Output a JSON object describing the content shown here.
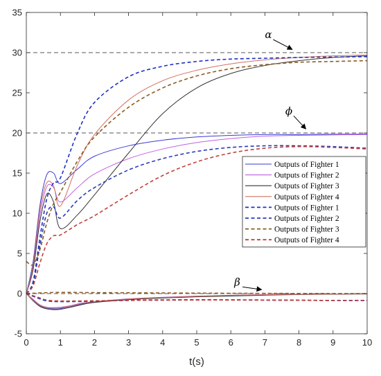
{
  "chart_data": {
    "type": "line",
    "xlabel": "t(s)",
    "ylabel": "",
    "xlim": [
      0,
      10
    ],
    "ylim": [
      -5,
      35
    ],
    "xticks": [
      "0",
      "1",
      "2",
      "3",
      "4",
      "5",
      "6",
      "7",
      "8",
      "9",
      "10"
    ],
    "yticks": [
      "-5",
      "0",
      "5",
      "10",
      "15",
      "20",
      "25",
      "30",
      "35"
    ],
    "grid": false,
    "legend_position": "right",
    "reference_lines": [
      {
        "y": 30,
        "color": "#555555",
        "dash": true
      },
      {
        "y": 20,
        "color": "#555555",
        "dash": true
      },
      {
        "y": 0,
        "color": "#555555",
        "dash": true
      }
    ],
    "annotations": [
      {
        "text": "α",
        "x": 7.0,
        "y": 31.8,
        "arrow_to": [
          7.8,
          30.4
        ]
      },
      {
        "text": "ϕ",
        "x": 7.6,
        "y": 22.3,
        "arrow_to": [
          8.2,
          20.5
        ]
      },
      {
        "text": "β",
        "x": 6.1,
        "y": 1.0,
        "arrow_to": [
          6.9,
          0.5
        ]
      }
    ],
    "series": [
      {
        "name": "Outputs of Fighter 1",
        "color": "#3a3ad6",
        "dash": false,
        "x": [
          0,
          0.2,
          0.4,
          0.6,
          0.8,
          1.0,
          1.5,
          2,
          3,
          4,
          5,
          6,
          7,
          8,
          9,
          10
        ],
        "y": [
          0,
          4,
          11,
          14.8,
          15,
          13.7,
          15.5,
          17.1,
          18.4,
          19.1,
          19.5,
          19.7,
          19.8,
          19.8,
          19.85,
          19.85
        ]
      },
      {
        "name": "Outputs of Fighter 2",
        "color": "#c060e0",
        "dash": false,
        "x": [
          0,
          0.2,
          0.4,
          0.6,
          0.8,
          1.0,
          1.5,
          2,
          3,
          4,
          5,
          6,
          7,
          8,
          9,
          10
        ],
        "y": [
          0,
          3.3,
          9.8,
          13.3,
          13.2,
          11.4,
          13.2,
          14.9,
          16.8,
          18.0,
          18.8,
          19.3,
          19.6,
          19.7,
          19.75,
          19.8
        ]
      },
      {
        "name": "Outputs of Fighter 3",
        "color": "#333333",
        "dash": false,
        "x": [
          0,
          0.2,
          0.4,
          0.6,
          0.8,
          1.0,
          1.5,
          2,
          3,
          4,
          5,
          6,
          7,
          8,
          9,
          10
        ],
        "y": [
          0,
          3,
          9,
          12.4,
          11.4,
          8.1,
          9.8,
          12.3,
          17.5,
          22.4,
          25.6,
          27.4,
          28.4,
          29.0,
          29.4,
          29.6
        ]
      },
      {
        "name": "Outputs of Fighter 4",
        "color": "#d07060",
        "dash": false,
        "x": [
          0,
          0.2,
          0.4,
          0.6,
          0.8,
          1.0,
          1.5,
          2,
          3,
          4,
          5,
          6,
          7,
          8,
          9,
          10
        ],
        "y": [
          0,
          3.5,
          10.5,
          13.8,
          13.4,
          10.9,
          16.0,
          19.8,
          24.1,
          26.5,
          27.8,
          28.6,
          29.1,
          29.4,
          29.6,
          29.7
        ]
      },
      {
        "name": "Outputs of Fighter 1",
        "color": "#1f2fbf",
        "dash": true,
        "x": [
          0,
          0.2,
          0.4,
          0.6,
          0.8,
          1.0,
          1.5,
          2,
          3,
          4,
          5,
          6,
          7,
          8,
          9,
          10
        ],
        "y": [
          0,
          1.5,
          7.0,
          11.8,
          13.8,
          14.4,
          20.0,
          23.8,
          27.0,
          28.3,
          28.9,
          29.2,
          29.3,
          29.4,
          29.45,
          29.5
        ]
      },
      {
        "name": "Outputs of Fighter 2",
        "color": "#2b3ab8",
        "dash": true,
        "x": [
          0,
          0.2,
          0.4,
          0.6,
          0.8,
          1.0,
          1.5,
          2,
          3,
          4,
          5,
          6,
          7,
          8,
          9,
          10
        ],
        "y": [
          0,
          1.2,
          6.0,
          10.0,
          10.8,
          9.4,
          11.6,
          13.2,
          15.4,
          16.8,
          17.7,
          18.2,
          18.4,
          18.4,
          18.3,
          18.1
        ]
      },
      {
        "name": "Outputs of Fighter 3",
        "color": "#8a5a20",
        "dash": true,
        "x": [
          0,
          0.2,
          0.4,
          0.6,
          0.8,
          1.0,
          1.5,
          2,
          3,
          4,
          5,
          6,
          7,
          8,
          9,
          10
        ],
        "y": [
          4,
          3.6,
          5.5,
          8.8,
          11.2,
          12.6,
          16.5,
          19.5,
          23.2,
          25.6,
          27.1,
          28.0,
          28.5,
          28.8,
          28.9,
          29.0
        ]
      },
      {
        "name": "Outputs of Fighter 4",
        "color": "#c0403a",
        "dash": true,
        "x": [
          0,
          0.2,
          0.4,
          0.6,
          0.8,
          1.0,
          1.5,
          2,
          3,
          4,
          5,
          6,
          7,
          8,
          9,
          10
        ],
        "y": [
          0,
          1.0,
          3.8,
          6.2,
          7.2,
          7.3,
          8.6,
          9.7,
          12.3,
          14.7,
          16.4,
          17.5,
          18.1,
          18.3,
          18.2,
          18.0
        ]
      },
      {
        "name": "",
        "color": "#3a3ad6",
        "dash": false,
        "x": [
          0,
          0.2,
          0.4,
          0.6,
          0.8,
          1.0,
          1.3,
          1.6,
          2,
          3,
          4,
          5,
          6,
          7,
          8,
          9,
          10
        ],
        "y": [
          0,
          -0.8,
          -1.5,
          -1.8,
          -1.9,
          -1.85,
          -1.6,
          -1.3,
          -1.05,
          -0.7,
          -0.5,
          -0.35,
          -0.25,
          -0.15,
          -0.1,
          -0.06,
          -0.04
        ]
      },
      {
        "name": "",
        "color": "#c060e0",
        "dash": false,
        "x": [
          0,
          0.2,
          0.4,
          0.6,
          0.8,
          1.0,
          1.3,
          1.6,
          2,
          3,
          4,
          5,
          6,
          7,
          8,
          9,
          10
        ],
        "y": [
          0,
          -0.7,
          -1.4,
          -1.7,
          -1.75,
          -1.7,
          -1.5,
          -1.2,
          -1.0,
          -0.65,
          -0.45,
          -0.3,
          -0.2,
          -0.12,
          -0.08,
          -0.05,
          -0.03
        ]
      },
      {
        "name": "",
        "color": "#333333",
        "dash": false,
        "x": [
          0,
          0.2,
          0.4,
          0.6,
          0.8,
          1.0,
          1.3,
          1.6,
          2,
          3,
          4,
          5,
          6,
          7,
          8,
          9,
          10
        ],
        "y": [
          0,
          -0.9,
          -1.6,
          -1.9,
          -2.0,
          -1.95,
          -1.7,
          -1.4,
          -1.1,
          -0.75,
          -0.55,
          -0.4,
          -0.3,
          -0.2,
          -0.12,
          -0.08,
          -0.05
        ]
      },
      {
        "name": "",
        "color": "#d07060",
        "dash": false,
        "x": [
          0,
          0.2,
          0.4,
          0.6,
          0.8,
          1.0,
          1.3,
          1.6,
          2,
          3,
          4,
          5,
          6,
          7,
          8,
          9,
          10
        ],
        "y": [
          0,
          -0.8,
          -1.45,
          -1.75,
          -1.8,
          -1.75,
          -1.55,
          -1.25,
          -1.0,
          -0.68,
          -0.48,
          -0.33,
          -0.22,
          -0.14,
          -0.09,
          -0.06,
          -0.04
        ]
      },
      {
        "name": "",
        "color": "#1f2fbf",
        "dash": true,
        "x": [
          0,
          0.3,
          0.6,
          1,
          2,
          3,
          4,
          5,
          6,
          7,
          8,
          9,
          10
        ],
        "y": [
          0,
          -0.5,
          -0.9,
          -1.0,
          -0.95,
          -0.85,
          -0.8,
          -0.78,
          -0.78,
          -0.8,
          -0.82,
          -0.85,
          -0.85
        ]
      },
      {
        "name": "",
        "color": "#2b3ab8",
        "dash": true,
        "x": [
          0,
          0.3,
          0.6,
          1,
          2,
          3,
          4,
          5,
          6,
          7,
          8,
          9,
          10
        ],
        "y": [
          0,
          -0.45,
          -0.85,
          -0.95,
          -0.9,
          -0.82,
          -0.78,
          -0.77,
          -0.78,
          -0.8,
          -0.83,
          -0.85,
          -0.86
        ]
      },
      {
        "name": "",
        "color": "#8a5a20",
        "dash": true,
        "x": [
          0,
          0.5,
          1,
          2,
          3,
          4,
          5,
          6,
          7,
          8,
          9,
          10
        ],
        "y": [
          0,
          0.1,
          0.15,
          0.12,
          0.1,
          0.08,
          0.06,
          0.04,
          0.03,
          0.02,
          0.01,
          0.0
        ]
      },
      {
        "name": "",
        "color": "#c0403a",
        "dash": true,
        "x": [
          0,
          0.3,
          0.6,
          1,
          2,
          3,
          4,
          5,
          6,
          7,
          8,
          9,
          10
        ],
        "y": [
          0,
          -0.4,
          -0.8,
          -0.92,
          -0.9,
          -0.85,
          -0.82,
          -0.8,
          -0.8,
          -0.82,
          -0.84,
          -0.86,
          -0.87
        ]
      }
    ]
  }
}
